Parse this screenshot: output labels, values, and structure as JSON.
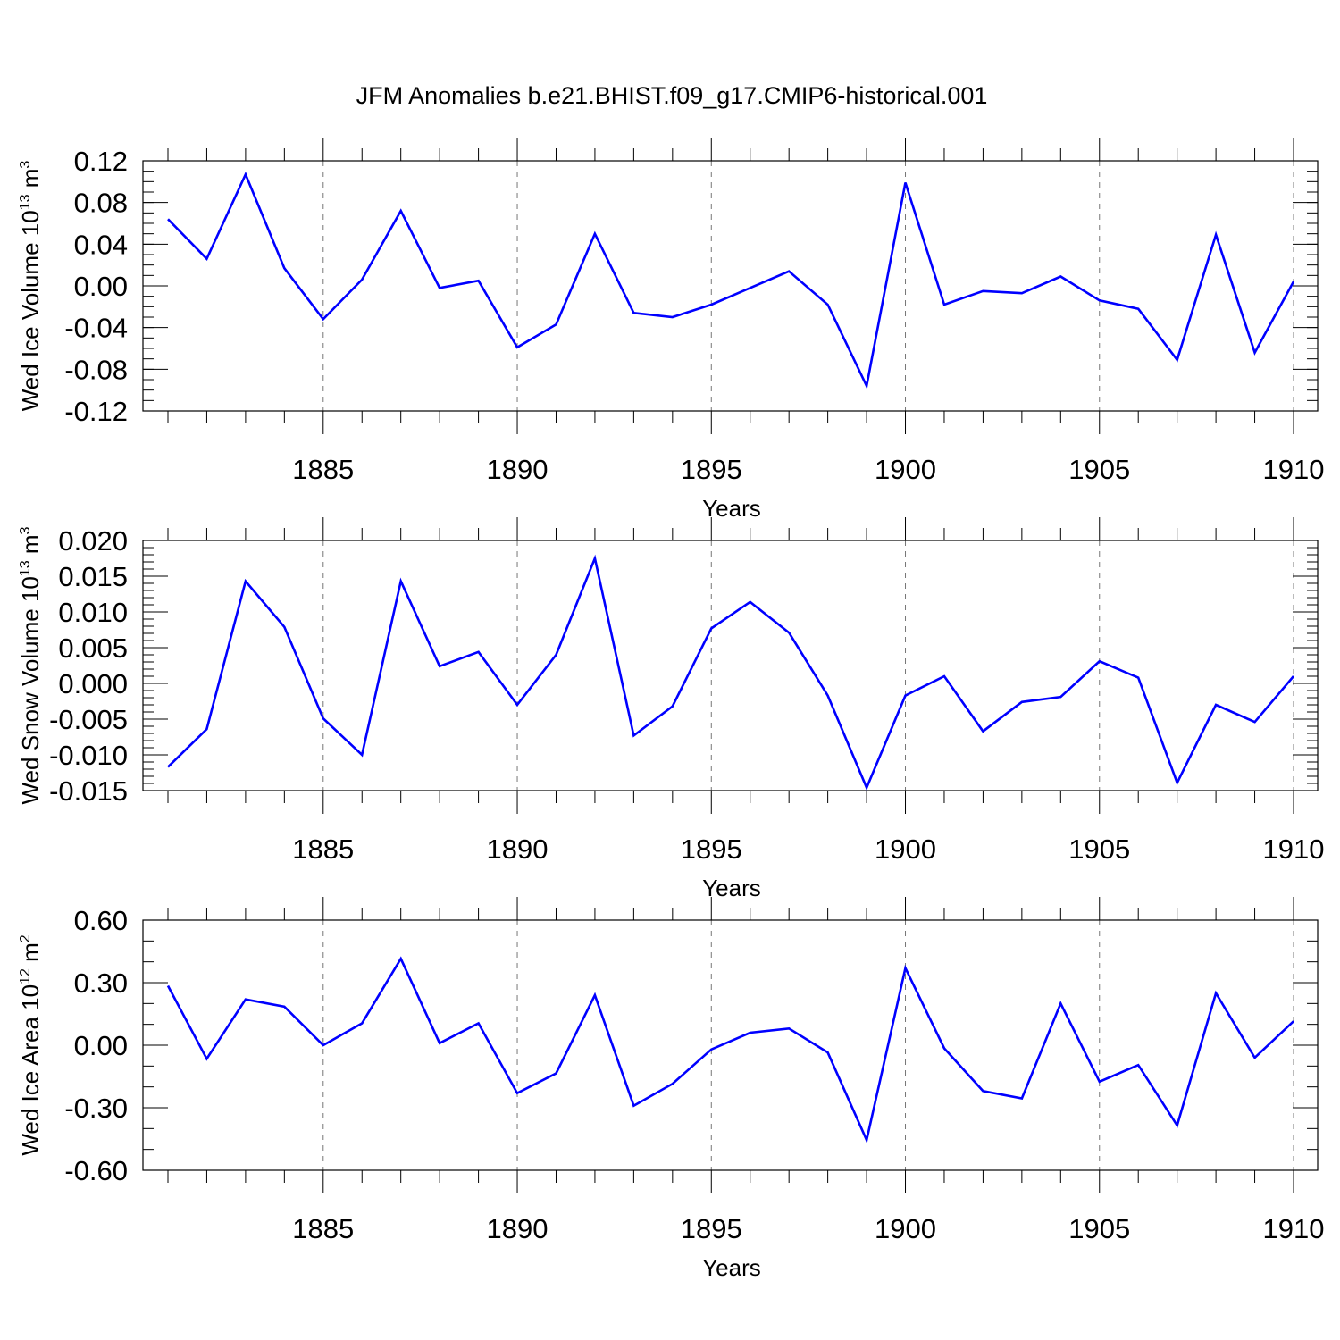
{
  "figure_title": "JFM Anomalies b.e21.BHIST.f09_g17.CMIP6-historical.001",
  "chart_data": [
    {
      "type": "line",
      "title": "JFM Anomalies b.e21.BHIST.f09_g17.CMIP6-historical.001",
      "ylabel": {
        "text": "Wed Ice Volume 10",
        "exp": "13",
        "unit": " m",
        "unit_exp": "3"
      },
      "xlabel": "Years",
      "xlim": [
        1881,
        1910
      ],
      "ylim": [
        -0.12,
        0.12
      ],
      "xticks": [
        1885,
        1890,
        1895,
        1900,
        1905,
        1910
      ],
      "xtick_labels": [
        "1885",
        "1890",
        "1895",
        "1900",
        "1905",
        "1910"
      ],
      "yticks": [
        0.12,
        0.08,
        0.04,
        0.0,
        -0.04,
        -0.08,
        -0.12
      ],
      "ytick_labels": [
        "0.12",
        "0.08",
        "0.04",
        "0.00",
        "-0.04",
        "-0.08",
        "-0.12"
      ],
      "ytick_minor_step": 0.01,
      "grid": "vertical dashed at major x ticks",
      "series": [
        {
          "name": "Wed Ice Volume",
          "color": "#0000ff",
          "x": [
            1881,
            1882,
            1883,
            1884,
            1885,
            1886,
            1887,
            1888,
            1889,
            1890,
            1891,
            1892,
            1893,
            1894,
            1895,
            1896,
            1897,
            1898,
            1899,
            1900,
            1901,
            1902,
            1903,
            1904,
            1905,
            1906,
            1907,
            1908,
            1909,
            1910
          ],
          "values": [
            0.064,
            0.026,
            0.107,
            0.017,
            -0.032,
            0.006,
            0.072,
            -0.002,
            0.005,
            -0.059,
            -0.037,
            0.05,
            -0.026,
            -0.03,
            -0.018,
            -0.002,
            0.014,
            -0.018,
            -0.096,
            0.099,
            -0.018,
            -0.005,
            -0.007,
            0.009,
            -0.014,
            -0.022,
            -0.071,
            0.049,
            -0.064,
            0.004
          ]
        }
      ]
    },
    {
      "type": "line",
      "ylabel": {
        "text": "Wed Snow Volume 10",
        "exp": "13",
        "unit": " m",
        "unit_exp": "3"
      },
      "xlabel": "Years",
      "xlim": [
        1881,
        1910
      ],
      "ylim": [
        -0.015,
        0.02
      ],
      "xticks": [
        1885,
        1890,
        1895,
        1900,
        1905,
        1910
      ],
      "xtick_labels": [
        "1885",
        "1890",
        "1895",
        "1900",
        "1905",
        "1910"
      ],
      "yticks": [
        0.02,
        0.015,
        0.01,
        0.005,
        0.0,
        -0.005,
        -0.01,
        -0.015
      ],
      "ytick_labels": [
        "0.020",
        "0.015",
        "0.010",
        "0.005",
        "0.000",
        "-0.005",
        "-0.010",
        "-0.015"
      ],
      "ytick_minor_step": 0.001,
      "grid": "vertical dashed at major x ticks",
      "series": [
        {
          "name": "Wed Snow Volume",
          "color": "#0000ff",
          "x": [
            1881,
            1882,
            1883,
            1884,
            1885,
            1886,
            1887,
            1888,
            1889,
            1890,
            1891,
            1892,
            1893,
            1894,
            1895,
            1896,
            1897,
            1898,
            1899,
            1900,
            1901,
            1902,
            1903,
            1904,
            1905,
            1906,
            1907,
            1908,
            1909,
            1910
          ],
          "values": [
            -0.0117,
            -0.0064,
            0.0143,
            0.0079,
            -0.0049,
            -0.01,
            0.0143,
            0.0024,
            0.0044,
            -0.003,
            0.004,
            0.0175,
            -0.0073,
            -0.0032,
            0.0077,
            0.0114,
            0.0071,
            -0.0017,
            -0.0146,
            -0.0017,
            0.001,
            -0.0067,
            -0.0026,
            -0.0019,
            0.0031,
            0.0008,
            -0.0139,
            -0.003,
            -0.0054,
            0.001
          ]
        }
      ]
    },
    {
      "type": "line",
      "ylabel": {
        "text": "Wed Ice Area 10",
        "exp": "12",
        "unit": " m",
        "unit_exp": "2"
      },
      "xlabel": "Years",
      "xlim": [
        1881,
        1910
      ],
      "ylim": [
        -0.6,
        0.6
      ],
      "xticks": [
        1885,
        1890,
        1895,
        1900,
        1905,
        1910
      ],
      "xtick_labels": [
        "1885",
        "1890",
        "1895",
        "1900",
        "1905",
        "1910"
      ],
      "yticks": [
        0.6,
        0.3,
        0.0,
        -0.3,
        -0.6
      ],
      "ytick_labels": [
        "0.60",
        "0.30",
        "0.00",
        "-0.30",
        "-0.60"
      ],
      "ytick_minor_step": 0.1,
      "grid": "vertical dashed at major x ticks",
      "series": [
        {
          "name": "Wed Ice Area",
          "color": "#0000ff",
          "x": [
            1881,
            1882,
            1883,
            1884,
            1885,
            1886,
            1887,
            1888,
            1889,
            1890,
            1891,
            1892,
            1893,
            1894,
            1895,
            1896,
            1897,
            1898,
            1899,
            1900,
            1901,
            1902,
            1903,
            1904,
            1905,
            1906,
            1907,
            1908,
            1909,
            1910
          ],
          "values": [
            0.285,
            -0.065,
            0.22,
            0.185,
            0.0,
            0.105,
            0.415,
            0.01,
            0.105,
            -0.23,
            -0.135,
            0.24,
            -0.29,
            -0.185,
            -0.02,
            0.06,
            0.08,
            -0.035,
            -0.455,
            0.37,
            -0.015,
            -0.22,
            -0.255,
            0.2,
            -0.175,
            -0.095,
            -0.385,
            0.25,
            -0.06,
            0.115
          ]
        }
      ]
    }
  ]
}
